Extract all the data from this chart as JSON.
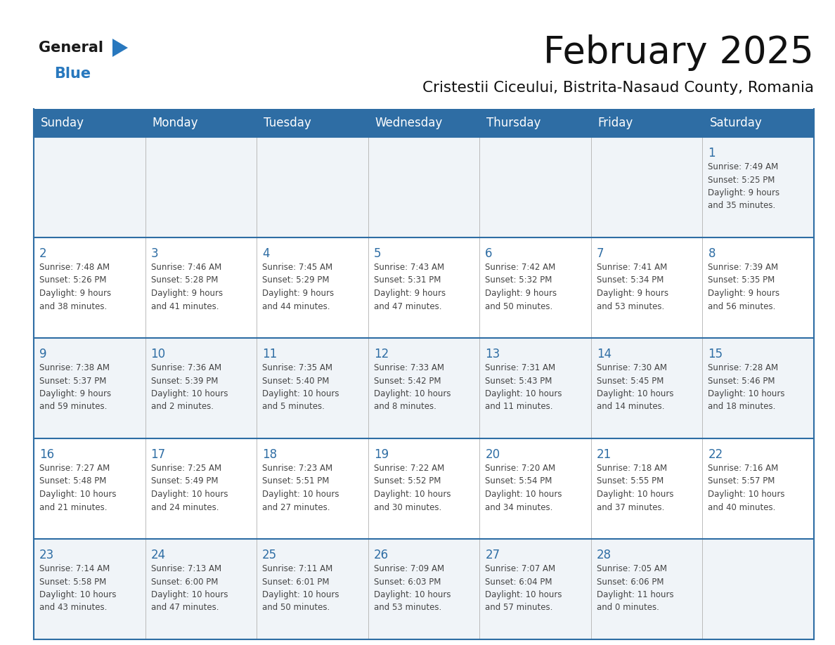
{
  "title": "February 2025",
  "subtitle": "Cristestii Ciceului, Bistrita-Nasaud County, Romania",
  "header_bg": "#2E6DA4",
  "header_text": "#FFFFFF",
  "cell_bg_light": "#F0F4F8",
  "cell_bg_white": "#FFFFFF",
  "header_line_color": "#2E6DA4",
  "day_num_color": "#2E6DA4",
  "info_color": "#444444",
  "background": "#FFFFFF",
  "day_headers": [
    "Sunday",
    "Monday",
    "Tuesday",
    "Wednesday",
    "Thursday",
    "Friday",
    "Saturday"
  ],
  "calendar": [
    [
      null,
      null,
      null,
      null,
      null,
      null,
      {
        "day": 1,
        "sunrise": "7:49 AM",
        "sunset": "5:25 PM",
        "daylight": "9 hours and 35 minutes."
      }
    ],
    [
      {
        "day": 2,
        "sunrise": "7:48 AM",
        "sunset": "5:26 PM",
        "daylight": "9 hours and 38 minutes."
      },
      {
        "day": 3,
        "sunrise": "7:46 AM",
        "sunset": "5:28 PM",
        "daylight": "9 hours and 41 minutes."
      },
      {
        "day": 4,
        "sunrise": "7:45 AM",
        "sunset": "5:29 PM",
        "daylight": "9 hours and 44 minutes."
      },
      {
        "day": 5,
        "sunrise": "7:43 AM",
        "sunset": "5:31 PM",
        "daylight": "9 hours and 47 minutes."
      },
      {
        "day": 6,
        "sunrise": "7:42 AM",
        "sunset": "5:32 PM",
        "daylight": "9 hours and 50 minutes."
      },
      {
        "day": 7,
        "sunrise": "7:41 AM",
        "sunset": "5:34 PM",
        "daylight": "9 hours and 53 minutes."
      },
      {
        "day": 8,
        "sunrise": "7:39 AM",
        "sunset": "5:35 PM",
        "daylight": "9 hours and 56 minutes."
      }
    ],
    [
      {
        "day": 9,
        "sunrise": "7:38 AM",
        "sunset": "5:37 PM",
        "daylight": "9 hours and 59 minutes."
      },
      {
        "day": 10,
        "sunrise": "7:36 AM",
        "sunset": "5:39 PM",
        "daylight": "10 hours and 2 minutes."
      },
      {
        "day": 11,
        "sunrise": "7:35 AM",
        "sunset": "5:40 PM",
        "daylight": "10 hours and 5 minutes."
      },
      {
        "day": 12,
        "sunrise": "7:33 AM",
        "sunset": "5:42 PM",
        "daylight": "10 hours and 8 minutes."
      },
      {
        "day": 13,
        "sunrise": "7:31 AM",
        "sunset": "5:43 PM",
        "daylight": "10 hours and 11 minutes."
      },
      {
        "day": 14,
        "sunrise": "7:30 AM",
        "sunset": "5:45 PM",
        "daylight": "10 hours and 14 minutes."
      },
      {
        "day": 15,
        "sunrise": "7:28 AM",
        "sunset": "5:46 PM",
        "daylight": "10 hours and 18 minutes."
      }
    ],
    [
      {
        "day": 16,
        "sunrise": "7:27 AM",
        "sunset": "5:48 PM",
        "daylight": "10 hours and 21 minutes."
      },
      {
        "day": 17,
        "sunrise": "7:25 AM",
        "sunset": "5:49 PM",
        "daylight": "10 hours and 24 minutes."
      },
      {
        "day": 18,
        "sunrise": "7:23 AM",
        "sunset": "5:51 PM",
        "daylight": "10 hours and 27 minutes."
      },
      {
        "day": 19,
        "sunrise": "7:22 AM",
        "sunset": "5:52 PM",
        "daylight": "10 hours and 30 minutes."
      },
      {
        "day": 20,
        "sunrise": "7:20 AM",
        "sunset": "5:54 PM",
        "daylight": "10 hours and 34 minutes."
      },
      {
        "day": 21,
        "sunrise": "7:18 AM",
        "sunset": "5:55 PM",
        "daylight": "10 hours and 37 minutes."
      },
      {
        "day": 22,
        "sunrise": "7:16 AM",
        "sunset": "5:57 PM",
        "daylight": "10 hours and 40 minutes."
      }
    ],
    [
      {
        "day": 23,
        "sunrise": "7:14 AM",
        "sunset": "5:58 PM",
        "daylight": "10 hours and 43 minutes."
      },
      {
        "day": 24,
        "sunrise": "7:13 AM",
        "sunset": "6:00 PM",
        "daylight": "10 hours and 47 minutes."
      },
      {
        "day": 25,
        "sunrise": "7:11 AM",
        "sunset": "6:01 PM",
        "daylight": "10 hours and 50 minutes."
      },
      {
        "day": 26,
        "sunrise": "7:09 AM",
        "sunset": "6:03 PM",
        "daylight": "10 hours and 53 minutes."
      },
      {
        "day": 27,
        "sunrise": "7:07 AM",
        "sunset": "6:04 PM",
        "daylight": "10 hours and 57 minutes."
      },
      {
        "day": 28,
        "sunrise": "7:05 AM",
        "sunset": "6:06 PM",
        "daylight": "11 hours and 0 minutes."
      },
      null
    ]
  ]
}
